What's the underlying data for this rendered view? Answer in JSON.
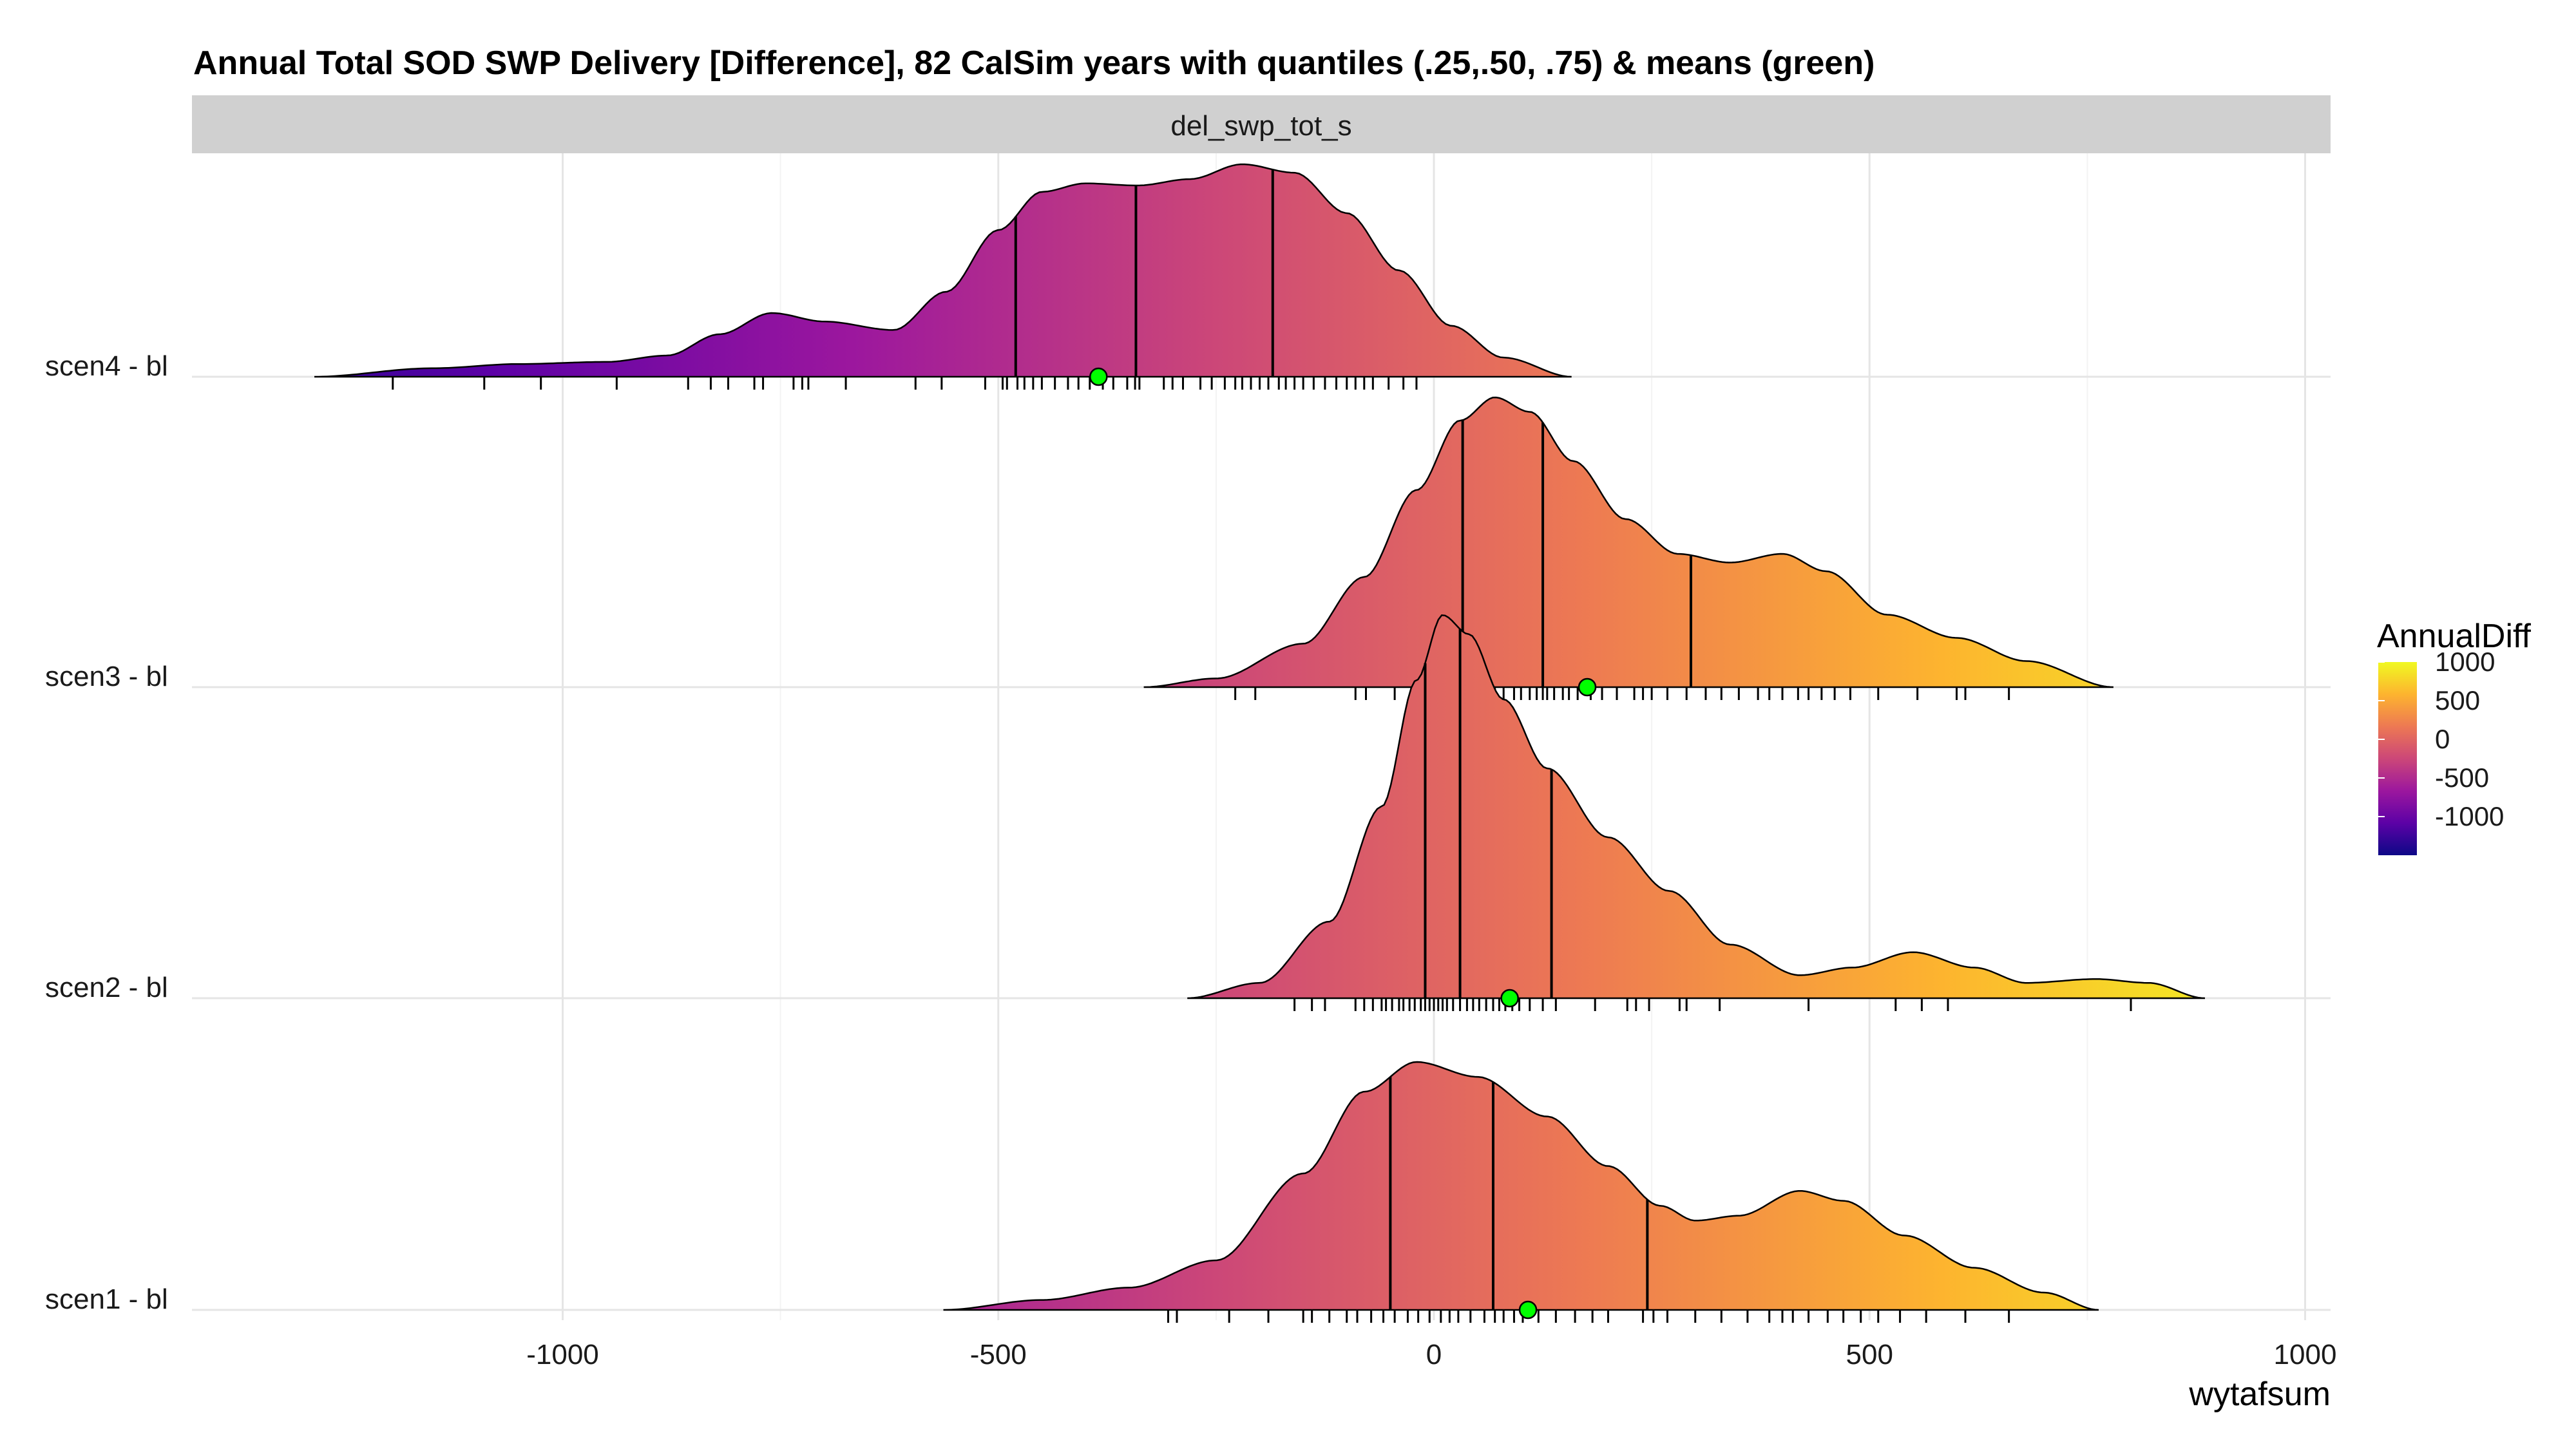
{
  "chart_data": {
    "type": "ridgeline",
    "title": "Annual Total SOD SWP Delivery [Difference], 82 CalSim years with quantiles (.25,.50, .75) & means (green)",
    "facet": "del_swp_tot_s",
    "xlabel": "wytafsum",
    "ylabel": "",
    "xlim": [
      -1000,
      1000
    ],
    "x_ticks": [
      "-1000",
      "-500",
      "0",
      "500",
      "1000"
    ],
    "grid": true,
    "legend": {
      "title": "AnnualDiff",
      "position": "right",
      "labels": [
        "1000",
        "500",
        "0",
        "-500",
        "-1000"
      ],
      "colors": [
        "#0d0887",
        "#5c01a6",
        "#9c179e",
        "#cc4778",
        "#ed7953",
        "#fdb42f",
        "#f0f921"
      ]
    },
    "mean_color": "#00ff00",
    "series": [
      {
        "name": "scen4 - bl",
        "range": [
          -1285,
          158
        ],
        "density": [
          [
            -1285,
            0.0
          ],
          [
            -1150,
            0.04
          ],
          [
            -1050,
            0.06
          ],
          [
            -950,
            0.07
          ],
          [
            -880,
            0.1
          ],
          [
            -820,
            0.2
          ],
          [
            -760,
            0.3
          ],
          [
            -700,
            0.26
          ],
          [
            -620,
            0.22
          ],
          [
            -560,
            0.4
          ],
          [
            -500,
            0.69
          ],
          [
            -450,
            0.87
          ],
          [
            -400,
            0.91
          ],
          [
            -340,
            0.9
          ],
          [
            -280,
            0.93
          ],
          [
            -220,
            1.0
          ],
          [
            -160,
            0.96
          ],
          [
            -100,
            0.77
          ],
          [
            -40,
            0.5
          ],
          [
            20,
            0.24
          ],
          [
            80,
            0.09
          ],
          [
            158,
            0.0
          ]
        ],
        "quantiles": [
          -480,
          -342,
          -185
        ],
        "mean": -385,
        "rug": [
          -1195,
          -1090,
          -1025,
          -938,
          -856,
          -830,
          -810,
          -780,
          -770,
          -735,
          -725,
          -718,
          -675,
          -595,
          -565,
          -515,
          -495,
          -490,
          -478,
          -470,
          -460,
          -450,
          -435,
          -420,
          -408,
          -395,
          -380,
          -368,
          -352,
          -343,
          -338,
          -310,
          -300,
          -288,
          -268,
          -255,
          -240,
          -228,
          -220,
          -210,
          -200,
          -190,
          -178,
          -170,
          -160,
          -150,
          -138,
          -125,
          -112,
          -100,
          -90,
          -80,
          -70,
          -52,
          -35,
          -20
        ]
      },
      {
        "name": "scen3 - bl",
        "range": [
          -333,
          780
        ],
        "density": [
          [
            -333,
            0.0
          ],
          [
            -250,
            0.03
          ],
          [
            -150,
            0.15
          ],
          [
            -80,
            0.38
          ],
          [
            -20,
            0.68
          ],
          [
            30,
            0.92
          ],
          [
            70,
            1.0
          ],
          [
            110,
            0.95
          ],
          [
            160,
            0.78
          ],
          [
            220,
            0.58
          ],
          [
            280,
            0.46
          ],
          [
            340,
            0.43
          ],
          [
            400,
            0.46
          ],
          [
            450,
            0.4
          ],
          [
            520,
            0.25
          ],
          [
            600,
            0.17
          ],
          [
            680,
            0.09
          ],
          [
            780,
            0.0
          ]
        ],
        "quantiles": [
          33,
          125,
          295
        ],
        "mean": 176,
        "rug": [
          -228,
          -205,
          -90,
          -78,
          -45,
          -25,
          -5,
          12,
          22,
          45,
          62,
          70,
          80,
          92,
          100,
          110,
          118,
          125,
          130,
          138,
          148,
          155,
          165,
          180,
          193,
          210,
          230,
          240,
          250,
          268,
          290,
          312,
          330,
          350,
          372,
          385,
          400,
          418,
          430,
          445,
          460,
          478,
          510,
          555,
          600,
          610,
          660
        ]
      },
      {
        "name": "scen2 - bl",
        "range": [
          -283,
          885
        ],
        "density": [
          [
            -283,
            0.0
          ],
          [
            -200,
            0.04
          ],
          [
            -120,
            0.2
          ],
          [
            -60,
            0.5
          ],
          [
            -20,
            0.83
          ],
          [
            10,
            1.0
          ],
          [
            40,
            0.95
          ],
          [
            80,
            0.78
          ],
          [
            130,
            0.6
          ],
          [
            200,
            0.42
          ],
          [
            270,
            0.28
          ],
          [
            340,
            0.14
          ],
          [
            420,
            0.06
          ],
          [
            480,
            0.08
          ],
          [
            550,
            0.12
          ],
          [
            620,
            0.08
          ],
          [
            680,
            0.04
          ],
          [
            760,
            0.05
          ],
          [
            820,
            0.04
          ],
          [
            885,
            0.0
          ]
        ],
        "quantiles": [
          -10,
          30,
          135
        ],
        "mean": 87,
        "rug": [
          -160,
          -140,
          -125,
          -90,
          -80,
          -70,
          -60,
          -55,
          -48,
          -40,
          -35,
          -28,
          -22,
          -15,
          -10,
          -5,
          0,
          5,
          10,
          15,
          22,
          30,
          38,
          45,
          52,
          60,
          68,
          75,
          82,
          90,
          98,
          110,
          125,
          140,
          185,
          222,
          232,
          247,
          282,
          290,
          328,
          430,
          530,
          560,
          590,
          800
        ]
      },
      {
        "name": "scen1 - bl",
        "range": [
          -563,
          763
        ],
        "density": [
          [
            -563,
            0.0
          ],
          [
            -450,
            0.04
          ],
          [
            -350,
            0.09
          ],
          [
            -250,
            0.2
          ],
          [
            -150,
            0.55
          ],
          [
            -80,
            0.88
          ],
          [
            -20,
            1.0
          ],
          [
            50,
            0.94
          ],
          [
            130,
            0.78
          ],
          [
            200,
            0.58
          ],
          [
            260,
            0.42
          ],
          [
            300,
            0.36
          ],
          [
            350,
            0.38
          ],
          [
            420,
            0.48
          ],
          [
            470,
            0.44
          ],
          [
            540,
            0.3
          ],
          [
            620,
            0.17
          ],
          [
            700,
            0.07
          ],
          [
            763,
            0.0
          ]
        ],
        "quantiles": [
          -50,
          68,
          245
        ],
        "mean": 108,
        "rug": [
          -305,
          -295,
          -235,
          -190,
          -150,
          -140,
          -120,
          -100,
          -88,
          -72,
          -58,
          -45,
          -30,
          -18,
          -5,
          8,
          18,
          28,
          42,
          58,
          70,
          80,
          92,
          102,
          120,
          140,
          162,
          182,
          200,
          240,
          252,
          268,
          300,
          330,
          360,
          385,
          400,
          412,
          430,
          452,
          470,
          490,
          510,
          535,
          565,
          610,
          660
        ]
      }
    ]
  }
}
